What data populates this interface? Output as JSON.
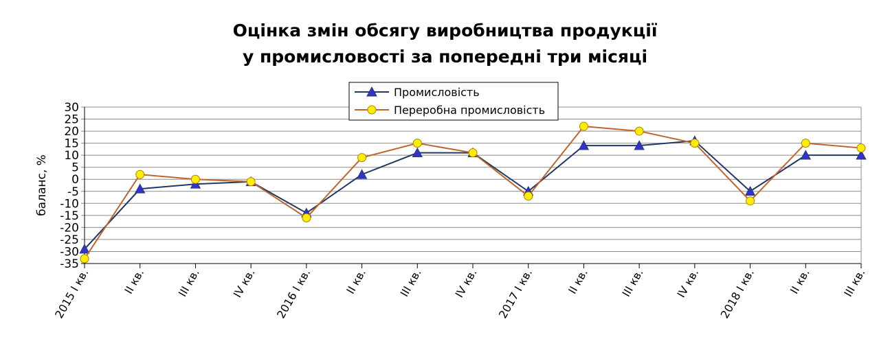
{
  "chart_data": {
    "type": "line",
    "title": [
      "Оцінка змін обсягу виробництва продукції",
      "у промисловості за попередні три місяці"
    ],
    "ylabel": "баланс, %",
    "xlabel": "",
    "ylim": [
      -35,
      30
    ],
    "yticks": [
      30,
      25,
      20,
      15,
      10,
      5,
      0,
      -5,
      -10,
      -15,
      -20,
      -25,
      -30,
      -35
    ],
    "grid": true,
    "legend_position": "top-center",
    "categories": [
      "2015 I кв.",
      "II кв.",
      "III кв.",
      "IV кв.",
      "2016 I кв.",
      "II кв.",
      "III кв.",
      "IV кв.",
      "2017 I кв.",
      "II кв.",
      "III кв.",
      "IV кв.",
      "2018 I кв.",
      "II кв.",
      "III кв."
    ],
    "series": [
      {
        "name": "Промисловість",
        "color": "#1f3864",
        "marker": "triangle",
        "marker_color": "#3333cc",
        "values": [
          -29,
          -4,
          -2,
          -1,
          -14,
          2,
          11,
          11,
          -5,
          14,
          14,
          16,
          -5,
          10,
          10
        ]
      },
      {
        "name": "Переробна промисловість",
        "color": "#c0642a",
        "marker": "circle",
        "marker_color": "#ffee00",
        "values": [
          -33,
          2,
          0,
          -1,
          -16,
          9,
          15,
          11,
          -7,
          22,
          20,
          15,
          -9,
          15,
          13
        ]
      }
    ]
  }
}
